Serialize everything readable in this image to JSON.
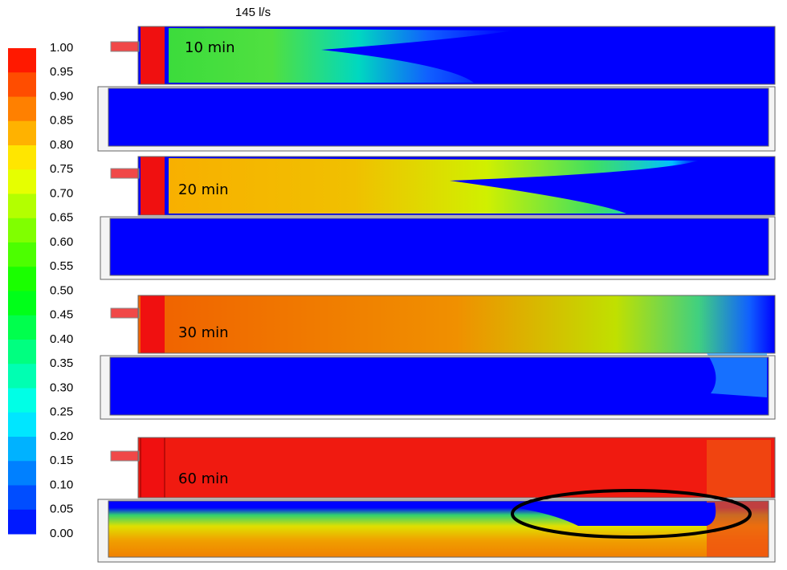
{
  "title": "145 l/s",
  "colorbar": {
    "labels": [
      "1.00",
      "0.95",
      "0.90",
      "0.85",
      "0.80",
      "0.75",
      "0.70",
      "0.65",
      "0.60",
      "0.55",
      "0.50",
      "0.45",
      "0.40",
      "0.35",
      "0.30",
      "0.25",
      "0.20",
      "0.15",
      "0.10",
      "0.05",
      "0.00"
    ]
  },
  "panels": [
    {
      "label": "10 min"
    },
    {
      "label": "20 min"
    },
    {
      "label": "30 min"
    },
    {
      "label": "60 min"
    }
  ]
}
